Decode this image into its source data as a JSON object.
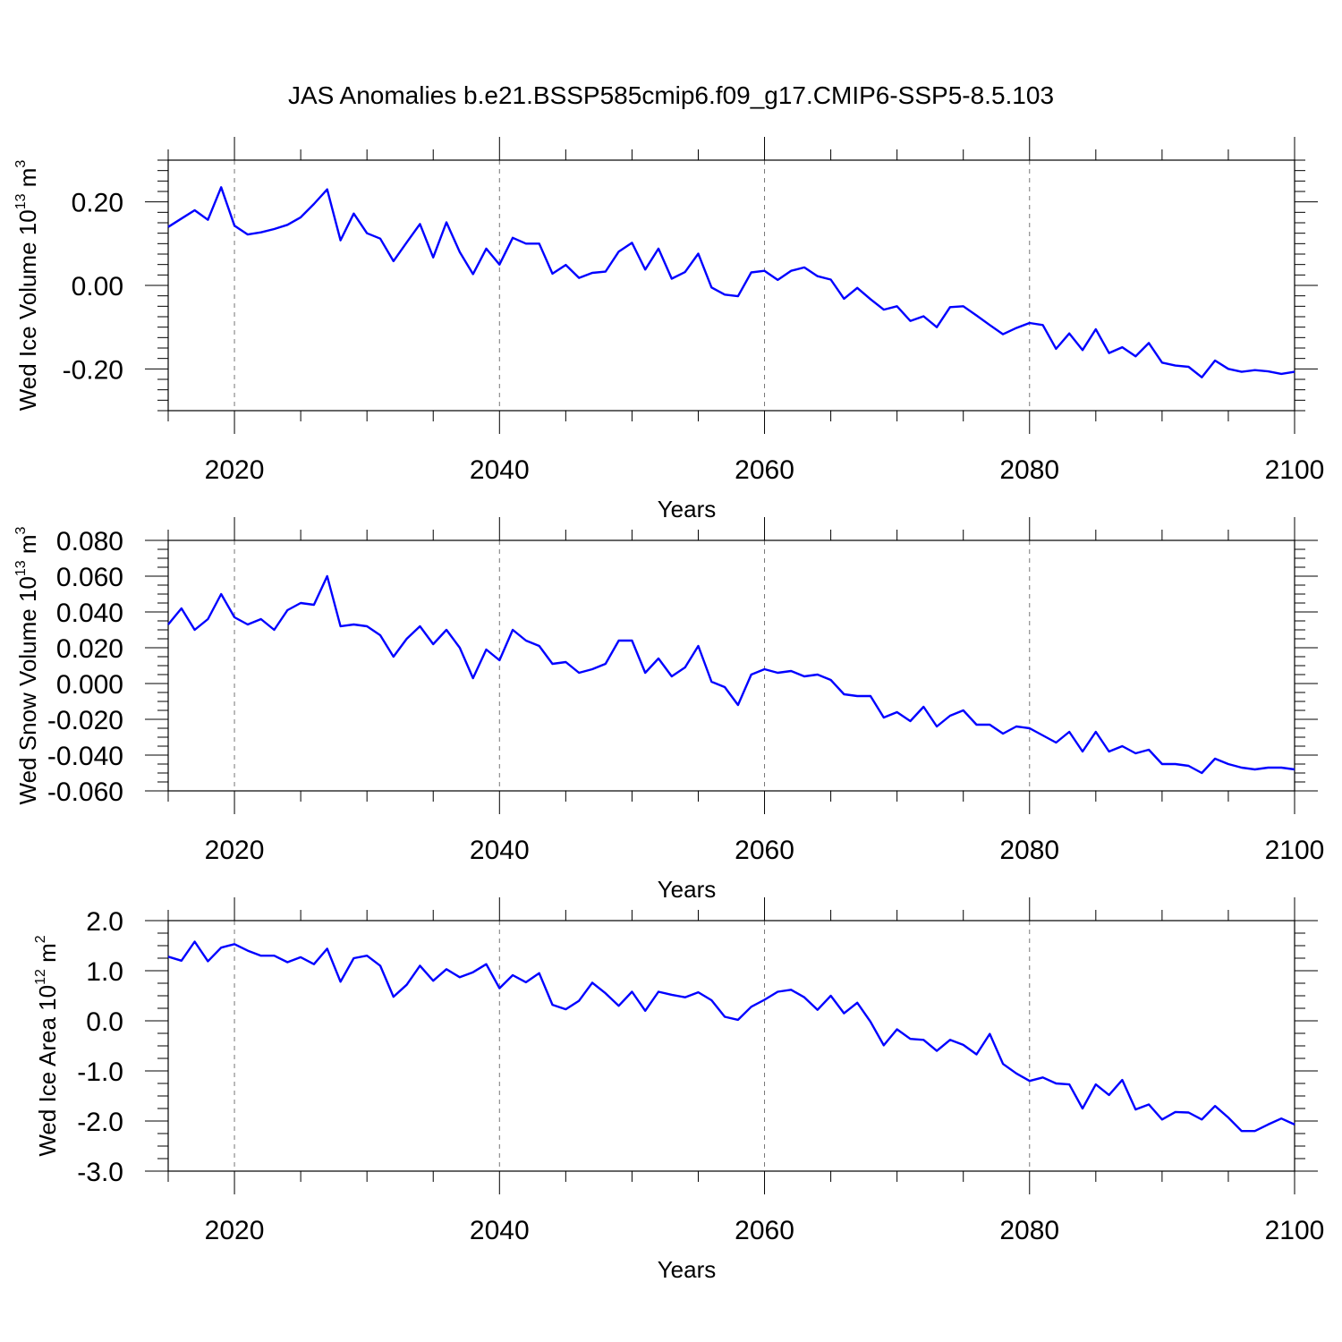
{
  "title": "JAS Anomalies b.e21.BSSP585cmip6.f09_g17.CMIP6-SSP5-8.5.103",
  "series_color": "#0000ff",
  "chart_data": [
    {
      "type": "line",
      "ylabel_main": "Wed Ice Volume 10",
      "ylabel_exp": "13",
      "ylabel_unit": " m",
      "ylabel_unit_exp": "3",
      "xlabel": "Years",
      "xlim": [
        2015,
        2100
      ],
      "ylim": [
        -0.3,
        0.3
      ],
      "x_ticks": [
        "2020",
        "2040",
        "2060",
        "2080",
        "2100"
      ],
      "y_ticks": [
        "0.20",
        "0.00",
        "-0.20"
      ],
      "x_start": 2015,
      "values": [
        0.14,
        0.16,
        0.18,
        0.157,
        0.235,
        0.143,
        0.122,
        0.127,
        0.135,
        0.145,
        0.163,
        0.195,
        0.23,
        0.108,
        0.172,
        0.125,
        0.112,
        0.058,
        0.103,
        0.147,
        0.067,
        0.151,
        0.08,
        0.027,
        0.088,
        0.05,
        0.114,
        0.1,
        0.1,
        0.028,
        0.049,
        0.018,
        0.03,
        0.033,
        0.081,
        0.102,
        0.038,
        0.088,
        0.016,
        0.032,
        0.076,
        -0.005,
        -0.022,
        -0.026,
        0.031,
        0.035,
        0.013,
        0.035,
        0.043,
        0.022,
        0.014,
        -0.032,
        -0.006,
        -0.033,
        -0.058,
        -0.05,
        -0.085,
        -0.074,
        -0.1,
        -0.052,
        -0.05,
        -0.072,
        -0.095,
        -0.117,
        -0.102,
        -0.09,
        -0.095,
        -0.152,
        -0.115,
        -0.155,
        -0.105,
        -0.162,
        -0.148,
        -0.17,
        -0.138,
        -0.185,
        -0.192,
        -0.195,
        -0.22,
        -0.18,
        -0.2,
        -0.207,
        -0.203,
        -0.206,
        -0.212,
        -0.207
      ]
    },
    {
      "type": "line",
      "ylabel_main": "Wed Snow Volume 10",
      "ylabel_exp": "13",
      "ylabel_unit": " m",
      "ylabel_unit_exp": "3",
      "xlabel": "Years",
      "xlim": [
        2015,
        2100
      ],
      "ylim": [
        -0.06,
        0.08
      ],
      "x_ticks": [
        "2020",
        "2040",
        "2060",
        "2080",
        "2100"
      ],
      "y_ticks": [
        "0.080",
        "0.060",
        "0.040",
        "0.020",
        "0.000",
        "-0.020",
        "-0.040",
        "-0.060"
      ],
      "x_start": 2015,
      "values": [
        0.033,
        0.042,
        0.03,
        0.036,
        0.05,
        0.037,
        0.033,
        0.036,
        0.03,
        0.041,
        0.045,
        0.044,
        0.06,
        0.032,
        0.033,
        0.032,
        0.027,
        0.015,
        0.025,
        0.032,
        0.022,
        0.03,
        0.02,
        0.003,
        0.019,
        0.013,
        0.03,
        0.024,
        0.021,
        0.011,
        0.012,
        0.006,
        0.008,
        0.011,
        0.024,
        0.024,
        0.006,
        0.014,
        0.004,
        0.009,
        0.021,
        0.001,
        -0.002,
        -0.012,
        0.005,
        0.008,
        0.006,
        0.007,
        0.004,
        0.005,
        0.002,
        -0.006,
        -0.007,
        -0.007,
        -0.019,
        -0.016,
        -0.021,
        -0.013,
        -0.024,
        -0.018,
        -0.015,
        -0.023,
        -0.023,
        -0.028,
        -0.024,
        -0.025,
        -0.029,
        -0.033,
        -0.027,
        -0.038,
        -0.027,
        -0.038,
        -0.035,
        -0.039,
        -0.037,
        -0.045,
        -0.045,
        -0.046,
        -0.05,
        -0.042,
        -0.045,
        -0.047,
        -0.048,
        -0.047,
        -0.047,
        -0.048
      ]
    },
    {
      "type": "line",
      "ylabel_main": "Wed Ice Area 10",
      "ylabel_exp": "12",
      "ylabel_unit": " m",
      "ylabel_unit_exp": "2",
      "xlabel": "Years",
      "xlim": [
        2015,
        2100
      ],
      "ylim": [
        -3.0,
        2.0
      ],
      "x_ticks": [
        "2020",
        "2040",
        "2060",
        "2080",
        "2100"
      ],
      "y_ticks": [
        "2.0",
        "1.0",
        "0.0",
        "-1.0",
        "-2.0",
        "-3.0"
      ],
      "x_start": 2015,
      "values": [
        1.28,
        1.2,
        1.58,
        1.19,
        1.46,
        1.53,
        1.4,
        1.3,
        1.3,
        1.17,
        1.27,
        1.13,
        1.44,
        0.78,
        1.25,
        1.3,
        1.1,
        0.48,
        0.72,
        1.1,
        0.8,
        1.03,
        0.87,
        0.97,
        1.13,
        0.65,
        0.91,
        0.77,
        0.95,
        0.32,
        0.23,
        0.4,
        0.76,
        0.55,
        0.3,
        0.58,
        0.2,
        0.58,
        0.52,
        0.47,
        0.57,
        0.41,
        0.08,
        0.02,
        0.28,
        0.42,
        0.58,
        0.62,
        0.47,
        0.22,
        0.5,
        0.15,
        0.36,
        -0.02,
        -0.49,
        -0.17,
        -0.36,
        -0.38,
        -0.6,
        -0.38,
        -0.48,
        -0.67,
        -0.26,
        -0.86,
        -1.05,
        -1.2,
        -1.13,
        -1.25,
        -1.27,
        -1.75,
        -1.27,
        -1.48,
        -1.18,
        -1.77,
        -1.67,
        -1.97,
        -1.82,
        -1.83,
        -1.97,
        -1.7,
        -1.93,
        -2.2,
        -2.2,
        -2.07,
        -1.95,
        -2.07
      ]
    }
  ]
}
